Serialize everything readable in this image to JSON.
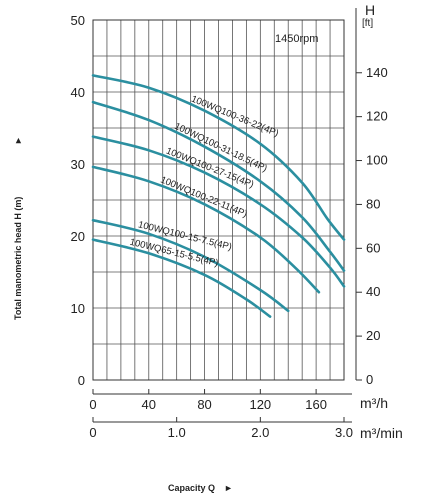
{
  "chart_data": {
    "type": "line",
    "title": "",
    "speed_label": "1450rpm",
    "xlabel": "Capacity Q",
    "ylabel": "Total manometric head H (m)",
    "x_unit_primary": "m³/h",
    "x_unit_secondary": "m³/min",
    "y_unit_right": "[ft]",
    "y_unit_right_symbol": "H",
    "xlim": [
      0,
      180
    ],
    "ylim": [
      0,
      50
    ],
    "x_ticks_primary": [
      0,
      40,
      80,
      120,
      160
    ],
    "x_tick_labels_primary": [
      "0",
      "40",
      "80",
      "120",
      "160"
    ],
    "x_ticks_secondary_m3h": [
      0,
      60,
      120,
      180
    ],
    "x_tick_labels_secondary": [
      "0",
      "1.0",
      "2.0",
      "3.0"
    ],
    "y_ticks_left": [
      0,
      10,
      20,
      30,
      40,
      50
    ],
    "y_tick_labels_left": [
      "0",
      "10",
      "20",
      "30",
      "40",
      "50"
    ],
    "y_ticks_right_ft": [
      0,
      20,
      40,
      60,
      80,
      100,
      120,
      140
    ],
    "y_tick_labels_right": [
      "0",
      "20",
      "40",
      "60",
      "80",
      "100",
      "120",
      "140"
    ],
    "grid": true,
    "series_color": "#2b8fa0",
    "series": [
      {
        "name": "100WQ100-36-22(4P)",
        "x": [
          0,
          40,
          80,
          120,
          150,
          168,
          180
        ],
        "y": [
          42.3,
          40.6,
          37.4,
          32.8,
          27.4,
          22.4,
          19.5
        ]
      },
      {
        "name": "100WQ100-31-18.5(4P)",
        "x": [
          0,
          40,
          80,
          120,
          150,
          170,
          180
        ],
        "y": [
          38.6,
          36.1,
          32.4,
          27.6,
          22.6,
          17.8,
          15.2
        ]
      },
      {
        "name": "100WQ100-27-15(4P)",
        "x": [
          0,
          40,
          80,
          120,
          150,
          170,
          180
        ],
        "y": [
          33.8,
          31.9,
          28.8,
          24.4,
          19.8,
          15.6,
          13.0
        ]
      },
      {
        "name": "100WQ100-22-11(4P)",
        "x": [
          0,
          40,
          80,
          120,
          145,
          162
        ],
        "y": [
          29.6,
          27.6,
          24.4,
          19.8,
          15.6,
          12.2
        ]
      },
      {
        "name": "100WQ100-15-7.5(4P)",
        "x": [
          0,
          40,
          80,
          120,
          140
        ],
        "y": [
          22.2,
          20.3,
          17.1,
          12.5,
          9.6
        ]
      },
      {
        "name": "100WQ65-15-5.5(4P)",
        "x": [
          0,
          40,
          80,
          110,
          127
        ],
        "y": [
          19.5,
          17.6,
          14.6,
          11.2,
          8.8
        ]
      }
    ]
  }
}
